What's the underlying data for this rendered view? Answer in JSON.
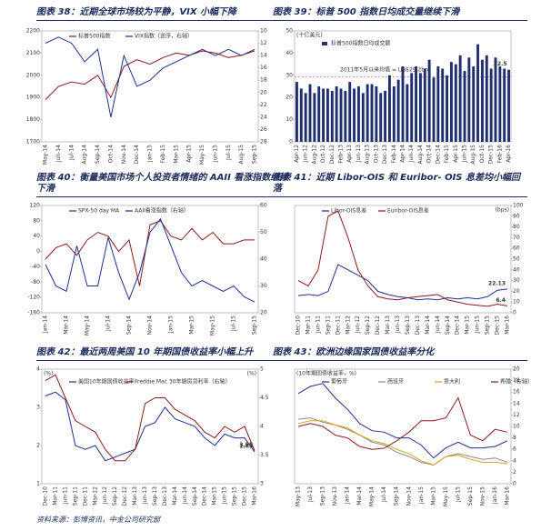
{
  "chart_data": [
    {
      "type": "line",
      "title": "图表 38：近期全球市场较为平静，VIX 小幅下降",
      "legend": "top",
      "categories": [
        "May-14",
        "Jun-14",
        "Jul-14",
        "Aug-14",
        "Sep-14",
        "Oct-14",
        "Nov-14",
        "Dec-14",
        "Jan-15",
        "Feb-15",
        "Mar-15",
        "Apr-15",
        "May-15",
        "Jun-15",
        "Jul-15",
        "Aug-15",
        "Sep-15"
      ],
      "series": [
        {
          "name": "标普500指数",
          "color": "#8b1a1a",
          "values": [
            1890,
            1950,
            1970,
            1960,
            2000,
            1900,
            2040,
            2070,
            2050,
            2080,
            2100,
            2090,
            2110,
            2100,
            2080,
            2090,
            2110
          ]
        },
        {
          "name": "VIX指数（逆序，右轴）",
          "color": "#1f2f8f",
          "axis": "y2",
          "values": [
            12,
            11,
            12,
            15,
            13,
            24,
            14,
            19,
            18,
            16,
            15,
            14,
            13,
            14,
            13,
            14,
            13
          ]
        }
      ],
      "ylim": [
        1700,
        2200
      ],
      "yticks": [
        1700,
        1800,
        1900,
        2000,
        2100,
        2200
      ],
      "y2lim": [
        10,
        28
      ],
      "y2_reversed": true,
      "y2ticks": [
        10,
        12,
        14,
        16,
        18,
        20,
        22,
        24,
        26,
        28
      ]
    },
    {
      "type": "bar",
      "title": "图表 39：标普 500 指数日均成交量继续下滑",
      "legend": "top",
      "ylabel": "(十亿美元)",
      "end_labels": true,
      "categories": [
        "Apr-12",
        null,
        "Jun-12",
        null,
        "Aug-12",
        null,
        "Oct-12",
        null,
        "Dec-12",
        null,
        "Feb-13",
        null,
        "Apr-13",
        null,
        "Jun-13",
        null,
        "Aug-13",
        null,
        "Oct-13",
        null,
        "Dec-13",
        null,
        "Feb-14",
        null,
        "Apr-14",
        null,
        "Jun-14",
        null,
        "Aug-14",
        null,
        "Oct-14",
        null,
        "Dec-14",
        null,
        "Feb-15",
        null,
        "Apr-15",
        null,
        "Jun-15",
        null,
        "Aug-15",
        null,
        "Oct-15",
        null,
        "Dec-15",
        null,
        "Feb-16",
        null,
        "Apr-16"
      ],
      "series": [
        {
          "name": "标普500指数日均成交额",
          "color": "#1f2f6f",
          "values": [
            27,
            24,
            22,
            26,
            22,
            25,
            24,
            24,
            23,
            25,
            24,
            23,
            27,
            24,
            25,
            22,
            26,
            26,
            25,
            22,
            23,
            30,
            25,
            28,
            34,
            26,
            31,
            34,
            31,
            33,
            37,
            29,
            34,
            33,
            30,
            36,
            35,
            39,
            32,
            38,
            34,
            44,
            37,
            39,
            33,
            38,
            34,
            33,
            32.5
          ]
        }
      ],
      "reference_line": {
        "value": 29.2,
        "label": "2011年5月以来均值 = US$29.2bn",
        "color": "#e06060"
      },
      "ylim": [
        0,
        50
      ],
      "yticks": [
        0,
        10,
        20,
        30,
        40,
        50
      ]
    },
    {
      "type": "line",
      "title": "图表 40：衡量美国市场个人投资者情绪的 AAII 看涨指数继续下滑",
      "legend": "top",
      "categories": [
        "Jan-14",
        null,
        "Mar-14",
        null,
        "May-14",
        null,
        "Jul-14",
        null,
        "Sep-14",
        null,
        "Nov-14",
        null,
        "Jan-15",
        null,
        "Mar-15",
        null,
        "May-15",
        null,
        "Jul-15",
        null,
        "Sep-15"
      ],
      "series": [
        {
          "name": "SPX-50 day MA",
          "color": "#8b1a1a",
          "values": [
            -20,
            10,
            20,
            -10,
            30,
            50,
            40,
            0,
            30,
            -90,
            70,
            80,
            40,
            30,
            60,
            30,
            50,
            20,
            20,
            30,
            30
          ]
        },
        {
          "name": "AAII看涨指数（右轴）",
          "color": "#1f2f8f",
          "axis": "y2",
          "values": [
            38,
            30,
            28,
            45,
            30,
            30,
            48,
            35,
            25,
            35,
            50,
            55,
            45,
            35,
            30,
            32,
            30,
            28,
            30,
            26,
            24
          ]
        }
      ],
      "ylim": [
        -160,
        120
      ],
      "yticks": [
        -160,
        -120,
        -80,
        -40,
        0,
        40,
        80,
        120
      ],
      "y2lim": [
        20,
        60
      ],
      "y2ticks": [
        20,
        30,
        40,
        50,
        60
      ]
    },
    {
      "type": "line",
      "title": "图表 41：近期 Libor-OIS 和 Euribor- OIS 息差均小幅回落",
      "legend": "top",
      "y_side": "right",
      "ylabel": "(bps)",
      "end_labels": true,
      "categories": [
        "Dec-10",
        "Mar-11",
        "Jun-11",
        "Sep-11",
        "Dec-11",
        "Mar-12",
        "Jun-12",
        "Sep-12",
        "Dec-12",
        "Mar-13",
        "Jun-13",
        "Sep-13",
        "Dec-13",
        "Mar-14",
        "Jun-14",
        "Sep-14",
        "Dec-14",
        "Mar-15",
        "Jun-15",
        "Sep-15",
        "Dec-15",
        "Mar-16"
      ],
      "series": [
        {
          "name": "Libor-OIS息差",
          "color": "#1f2f8f",
          "values": [
            16,
            17,
            16,
            20,
            45,
            40,
            35,
            30,
            20,
            17,
            15,
            14,
            12,
            13,
            12,
            14,
            13,
            14,
            13,
            15,
            21,
            22.13
          ]
        },
        {
          "name": "Euribor-OIS息差",
          "color": "#8b1a1a",
          "values": [
            30,
            25,
            40,
            90,
            95,
            70,
            40,
            25,
            15,
            13,
            12,
            14,
            15,
            16,
            17,
            12,
            10,
            8,
            7,
            6,
            8,
            6.4
          ]
        }
      ],
      "ylim": [
        0,
        100
      ],
      "yticks": [
        0,
        10,
        20,
        30,
        40,
        50,
        60,
        70,
        80,
        90,
        100
      ]
    },
    {
      "type": "line",
      "title": "图表 42：最近两周美国 10 年期国债收益率小幅上升",
      "legend": "top",
      "ylabel": "(%)",
      "y2label": "(%)",
      "end_labels": true,
      "categories": [
        "Dec-10",
        "Mar-11",
        "Jun-11",
        "Sep-11",
        "Dec-11",
        "Mar-12",
        "Jun-12",
        "Sep-12",
        "Dec-12",
        "Mar-13",
        "Jun-13",
        "Sep-13",
        "Dec-13",
        "Mar-14",
        "Jun-14",
        "Sep-14",
        "Dec-14",
        "Mar-15",
        "Jun-15",
        "Sep-15",
        "Dec-15",
        "Mar-16"
      ],
      "series": [
        {
          "name": "美国10年期国债收益率",
          "color": "#1f2f8f",
          "values": [
            3.3,
            3.4,
            3.2,
            2.0,
            1.9,
            2.0,
            1.6,
            1.7,
            1.8,
            1.9,
            2.5,
            2.6,
            3.0,
            2.7,
            2.6,
            2.5,
            2.2,
            2.0,
            2.3,
            2.2,
            2.2,
            1.83
          ]
        },
        {
          "name": "Freddie Mac 30年期房贷利率（右轴）",
          "color": "#8b1a1a",
          "axis": "y2",
          "values": [
            4.8,
            4.9,
            4.5,
            4.1,
            4.0,
            3.9,
            3.6,
            3.4,
            3.4,
            3.6,
            4.4,
            4.5,
            4.5,
            4.3,
            4.2,
            4.1,
            3.9,
            3.8,
            4.0,
            3.9,
            4.0,
            3.58
          ]
        }
      ],
      "ylim": [
        1,
        4
      ],
      "yticks": [
        1,
        2,
        3,
        4
      ],
      "y2lim": [
        3,
        5
      ],
      "y2ticks": [
        3,
        3.5,
        4,
        4.5,
        5
      ]
    },
    {
      "type": "line",
      "title": "图表 43：欧洲边缘国家国债收益率分化",
      "legend": "top",
      "ylabel": "(10年期国债收益率，%)",
      "categories": [
        "May-13",
        "Jul-13",
        "Sep-13",
        "Nov-13",
        "Jan-14",
        "Mar-14",
        "May-14",
        "Jul-14",
        "Sep-14",
        "Nov-14",
        "Jan-15",
        "Mar-15",
        "May-15",
        "Jul-15",
        "Sep-15",
        "Nov-15",
        "Jan-16",
        "Mar-16"
      ],
      "series": [
        {
          "name": "葡萄牙",
          "color": "#1f2f8f",
          "values": [
            6.3,
            6.8,
            7.0,
            6.0,
            5.2,
            4.2,
            3.7,
            3.6,
            3.2,
            3.2,
            2.7,
            1.8,
            2.5,
            2.9,
            2.5,
            2.5,
            2.6,
            3.0
          ]
        },
        {
          "name": "西班牙",
          "color": "#888888",
          "values": [
            4.5,
            4.6,
            4.3,
            4.1,
            3.8,
            3.4,
            2.9,
            2.7,
            2.2,
            1.9,
            1.5,
            1.3,
            1.9,
            2.1,
            1.9,
            1.7,
            1.8,
            1.5
          ]
        },
        {
          "name": "意大利",
          "color": "#d4a017",
          "values": [
            4.2,
            4.4,
            4.4,
            4.1,
            3.9,
            3.4,
            3.0,
            2.8,
            2.4,
            2.1,
            1.6,
            1.3,
            1.9,
            2.0,
            1.7,
            1.5,
            1.5,
            1.4
          ]
        },
        {
          "name": "希腊（右轴）",
          "color": "#8b1a1a",
          "axis": "y2",
          "values": [
            10,
            10.5,
            10,
            8.5,
            8,
            6.5,
            6,
            6.2,
            7.5,
            9,
            11,
            11,
            11.5,
            15,
            8.5,
            7.5,
            9.5,
            9
          ]
        }
      ],
      "ylim": [
        0,
        8
      ],
      "y2lim": [
        0,
        20
      ],
      "y2ticks": [
        0,
        2,
        4,
        6,
        8,
        10,
        12,
        14,
        16,
        18,
        20
      ]
    }
  ],
  "source": "资料来源：彭博资讯，中金公司研究部"
}
